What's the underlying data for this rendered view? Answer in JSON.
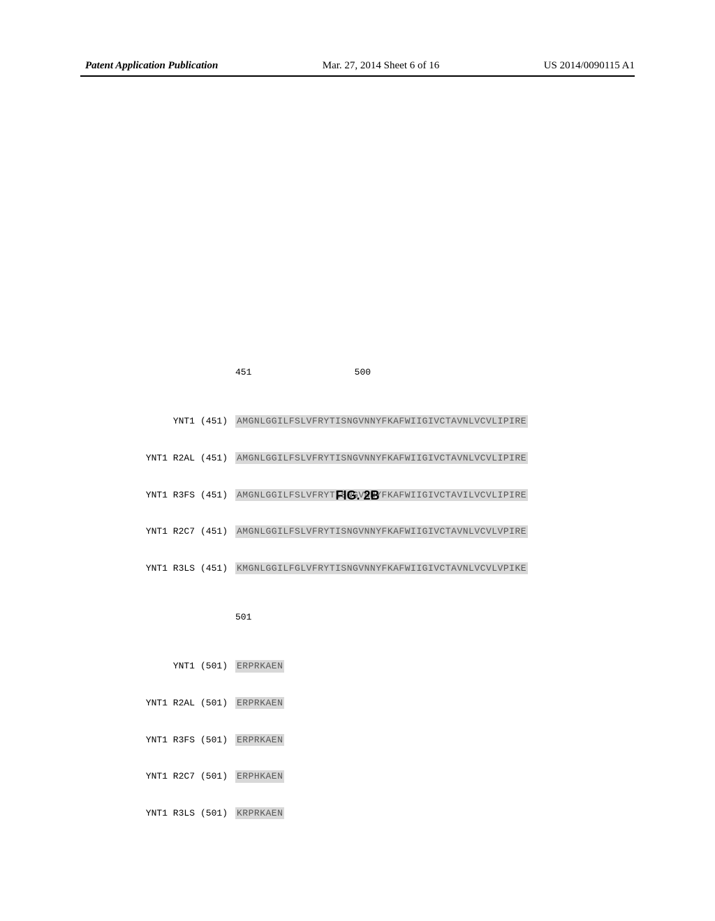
{
  "header": {
    "left": "Patent Application Publication",
    "center": "Mar. 27, 2014  Sheet 6 of 16",
    "right": "US 2014/0090115 A1"
  },
  "alignment": {
    "block1": {
      "pos_start": "451",
      "pos_end": "500",
      "rows": [
        {
          "label": "YNT1",
          "pos": "(451)",
          "seq": "AMGNLGGILFSLVFRYTISNGVNNYFKAFWIIGIVCTAVNLVCVLIPIRE"
        },
        {
          "label": "YNT1 R2AL",
          "pos": "(451)",
          "seq": "AMGNLGGILFSLVFRYTISNGVNNYFKAFWIIGIVCTAVNLVCVLIPIRE"
        },
        {
          "label": "YNT1 R3FS",
          "pos": "(451)",
          "seq": "AMGNLGGILFSLVFRYTISNGVNNYFKAFWIIGIVCTAVILVCVLIPIRE"
        },
        {
          "label": "YNT1 R2C7",
          "pos": "(451)",
          "seq": "AMGNLGGILFSLVFRYTISNGVNNYFKAFWIIGIVCTAVNLVCVLVPIRE"
        },
        {
          "label": "YNT1 R3LS",
          "pos": "(451)",
          "seq": "KMGNLGGILFGLVFRYTISNGVNNYFKAFWIIGIVCTAVNLVCVLVPIKE"
        }
      ]
    },
    "block2": {
      "pos_start": "501",
      "rows": [
        {
          "label": "YNT1",
          "pos": "(501)",
          "seq": "ERPRKAEN"
        },
        {
          "label": "YNT1 R2AL",
          "pos": "(501)",
          "seq": "ERPRKAEN"
        },
        {
          "label": "YNT1 R3FS",
          "pos": "(501)",
          "seq": "ERPRKAEN"
        },
        {
          "label": "YNT1 R2C7",
          "pos": "(501)",
          "seq": "ERPHKAEN"
        },
        {
          "label": "YNT1 R3LS",
          "pos": "(501)",
          "seq": "KRPRKAEN"
        }
      ]
    }
  },
  "figure_label": "FIG. 2B",
  "colors": {
    "seq_bg": "#d8d8d8",
    "seq_text": "#555555",
    "page_bg": "#ffffff"
  }
}
